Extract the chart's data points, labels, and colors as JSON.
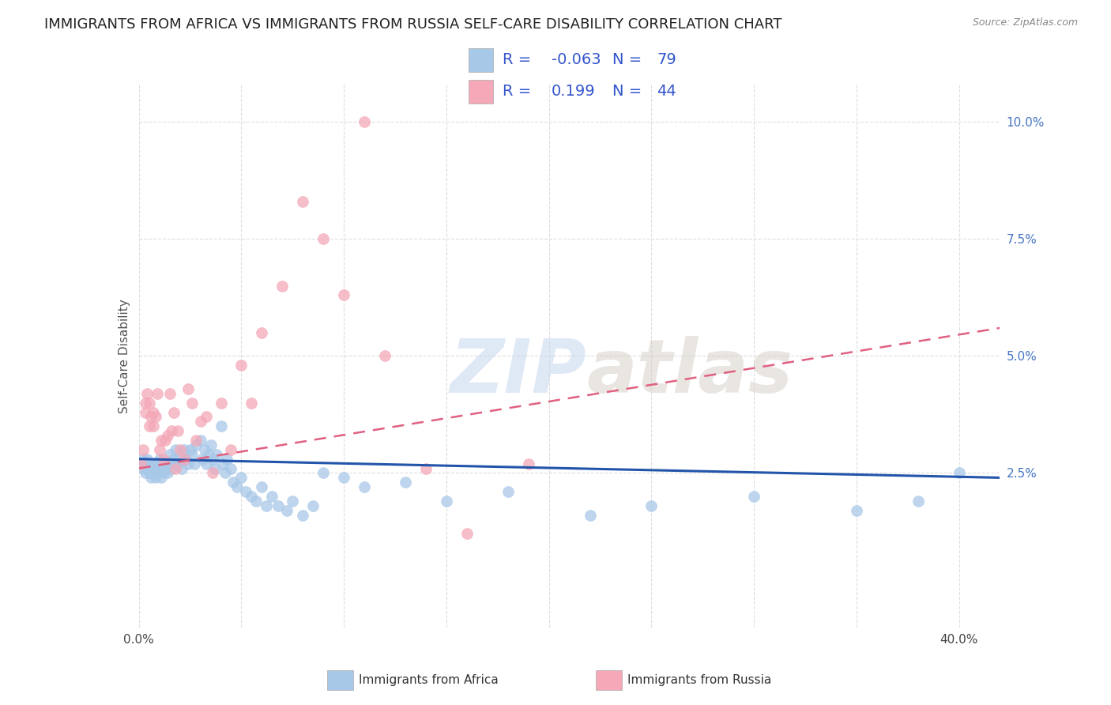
{
  "title": "IMMIGRANTS FROM AFRICA VS IMMIGRANTS FROM RUSSIA SELF-CARE DISABILITY CORRELATION CHART",
  "source": "Source: ZipAtlas.com",
  "ylabel": "Self-Care Disability",
  "ytick_labels": [
    "2.5%",
    "5.0%",
    "7.5%",
    "10.0%"
  ],
  "ytick_values": [
    0.025,
    0.05,
    0.075,
    0.1
  ],
  "xlim": [
    0.0,
    0.42
  ],
  "ylim": [
    -0.008,
    0.108
  ],
  "africa_color": "#a8c8e8",
  "russia_color": "#f4a8b8",
  "africa_line_color": "#2255aa",
  "russia_line_color": "#e06080",
  "africa_R": -0.063,
  "africa_N": 79,
  "russia_R": 0.199,
  "russia_N": 44,
  "legend_color": "#3355cc",
  "africa_scatter_x": [
    0.001,
    0.002,
    0.002,
    0.003,
    0.003,
    0.004,
    0.004,
    0.005,
    0.005,
    0.006,
    0.006,
    0.007,
    0.007,
    0.008,
    0.008,
    0.009,
    0.009,
    0.01,
    0.01,
    0.011,
    0.012,
    0.012,
    0.013,
    0.014,
    0.015,
    0.015,
    0.016,
    0.017,
    0.018,
    0.019,
    0.02,
    0.021,
    0.022,
    0.023,
    0.024,
    0.025,
    0.026,
    0.027,
    0.028,
    0.03,
    0.031,
    0.032,
    0.033,
    0.034,
    0.035,
    0.036,
    0.037,
    0.038,
    0.04,
    0.041,
    0.042,
    0.043,
    0.045,
    0.046,
    0.048,
    0.05,
    0.052,
    0.055,
    0.057,
    0.06,
    0.062,
    0.065,
    0.068,
    0.072,
    0.075,
    0.08,
    0.085,
    0.09,
    0.1,
    0.11,
    0.13,
    0.15,
    0.18,
    0.22,
    0.25,
    0.3,
    0.35,
    0.38,
    0.4
  ],
  "africa_scatter_y": [
    0.027,
    0.026,
    0.028,
    0.025,
    0.027,
    0.026,
    0.028,
    0.025,
    0.027,
    0.024,
    0.026,
    0.025,
    0.027,
    0.026,
    0.024,
    0.025,
    0.027,
    0.026,
    0.028,
    0.024,
    0.025,
    0.027,
    0.026,
    0.025,
    0.027,
    0.029,
    0.026,
    0.028,
    0.03,
    0.027,
    0.028,
    0.026,
    0.03,
    0.028,
    0.027,
    0.03,
    0.029,
    0.027,
    0.031,
    0.032,
    0.028,
    0.03,
    0.027,
    0.029,
    0.031,
    0.028,
    0.026,
    0.029,
    0.035,
    0.027,
    0.025,
    0.028,
    0.026,
    0.023,
    0.022,
    0.024,
    0.021,
    0.02,
    0.019,
    0.022,
    0.018,
    0.02,
    0.018,
    0.017,
    0.019,
    0.016,
    0.018,
    0.025,
    0.024,
    0.022,
    0.023,
    0.019,
    0.021,
    0.016,
    0.018,
    0.02,
    0.017,
    0.019,
    0.025
  ],
  "russia_scatter_x": [
    0.001,
    0.002,
    0.003,
    0.003,
    0.004,
    0.005,
    0.005,
    0.006,
    0.007,
    0.007,
    0.008,
    0.009,
    0.01,
    0.011,
    0.012,
    0.013,
    0.014,
    0.015,
    0.016,
    0.017,
    0.018,
    0.019,
    0.02,
    0.022,
    0.024,
    0.026,
    0.028,
    0.03,
    0.033,
    0.036,
    0.04,
    0.045,
    0.05,
    0.055,
    0.06,
    0.07,
    0.08,
    0.09,
    0.1,
    0.11,
    0.12,
    0.14,
    0.16,
    0.19
  ],
  "russia_scatter_y": [
    0.027,
    0.03,
    0.038,
    0.04,
    0.042,
    0.035,
    0.04,
    0.037,
    0.038,
    0.035,
    0.037,
    0.042,
    0.03,
    0.032,
    0.028,
    0.032,
    0.033,
    0.042,
    0.034,
    0.038,
    0.026,
    0.034,
    0.03,
    0.028,
    0.043,
    0.04,
    0.032,
    0.036,
    0.037,
    0.025,
    0.04,
    0.03,
    0.048,
    0.04,
    0.055,
    0.065,
    0.083,
    0.075,
    0.063,
    0.1,
    0.05,
    0.026,
    0.012,
    0.027
  ],
  "africa_trend_x": [
    0.0,
    0.42
  ],
  "africa_trend_y": [
    0.028,
    0.024
  ],
  "russia_trend_x": [
    0.0,
    0.42
  ],
  "russia_trend_y": [
    0.026,
    0.056
  ],
  "watermark_zip": "ZIP",
  "watermark_atlas": "atlas",
  "background_color": "#ffffff",
  "grid_color": "#dddddd",
  "title_fontsize": 13,
  "axis_label_fontsize": 11,
  "tick_fontsize": 11,
  "legend_fontsize": 14
}
